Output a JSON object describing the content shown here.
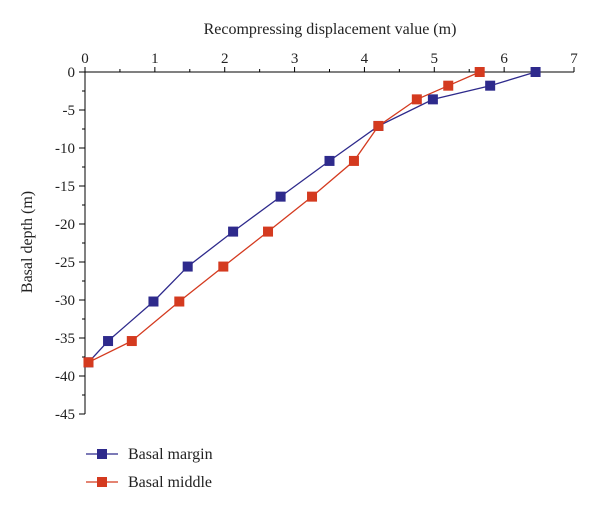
{
  "chart_data": {
    "type": "line",
    "title": "",
    "xlabel": "Recompressing displacement value (m)",
    "ylabel": "Basal depth (m)",
    "xlim": [
      0,
      7
    ],
    "ylim": [
      -45,
      0
    ],
    "x_axis_position": "top",
    "grid": false,
    "legend_position": "bottom-left",
    "x_ticks": [
      "0",
      "1",
      "2",
      "3",
      "4",
      "5",
      "6",
      "7"
    ],
    "y_ticks": [
      "0",
      "-5",
      "-10",
      "-15",
      "-20",
      "-25",
      "-30",
      "-35",
      "-40",
      "-45"
    ],
    "series": [
      {
        "name": "Basal margin",
        "color": "#2e2a8c",
        "points": [
          [
            6.45,
            0
          ],
          [
            5.8,
            -1.8
          ],
          [
            4.98,
            -3.6
          ],
          [
            4.2,
            -7.1
          ],
          [
            3.5,
            -11.7
          ],
          [
            2.8,
            -16.4
          ],
          [
            2.12,
            -21
          ],
          [
            1.47,
            -25.6
          ],
          [
            0.98,
            -30.2
          ],
          [
            0.33,
            -35.4
          ],
          [
            0.05,
            -38.2
          ]
        ]
      },
      {
        "name": "Basal middle",
        "color": "#d43a1f",
        "points": [
          [
            5.65,
            0
          ],
          [
            5.2,
            -1.8
          ],
          [
            4.75,
            -3.6
          ],
          [
            4.2,
            -7.1
          ],
          [
            3.85,
            -11.7
          ],
          [
            3.25,
            -16.4
          ],
          [
            2.62,
            -21
          ],
          [
            1.98,
            -25.6
          ],
          [
            1.35,
            -30.2
          ],
          [
            0.67,
            -35.4
          ],
          [
            0.05,
            -38.2
          ]
        ]
      }
    ]
  }
}
